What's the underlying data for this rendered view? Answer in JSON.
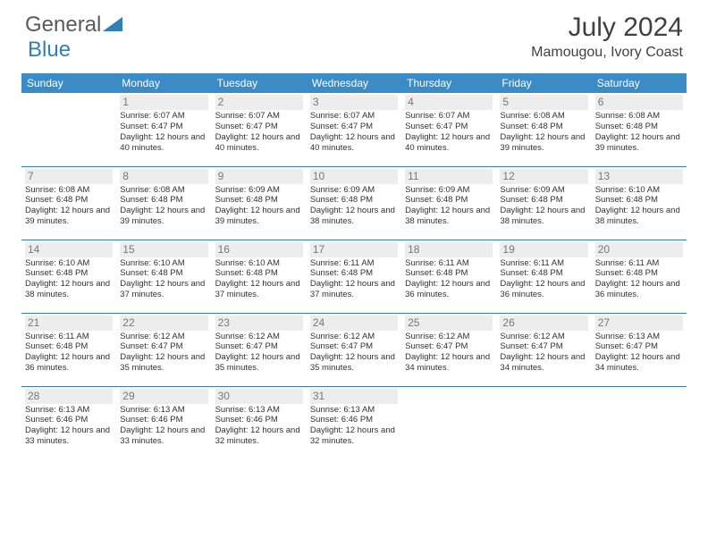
{
  "logo": {
    "text1": "General",
    "text2": "Blue",
    "color1": "#5a5a5a",
    "color2": "#2f7fb8",
    "triangle_color": "#2f7fb8"
  },
  "title": "July 2024",
  "location": "Mamougou, Ivory Coast",
  "colors": {
    "header_bg": "#3b8bc7",
    "header_text": "#ffffff",
    "row_divider": "#2f7fb8",
    "daynum_bg": "#ededed",
    "daynum_text": "#787878",
    "body_text": "#323232",
    "title_text": "#404040"
  },
  "fonts": {
    "title_pt": 30,
    "location_pt": 16,
    "weekday_pt": 12,
    "daynum_pt": 12,
    "cell_pt": 9.5
  },
  "weekdays": [
    "Sunday",
    "Monday",
    "Tuesday",
    "Wednesday",
    "Thursday",
    "Friday",
    "Saturday"
  ],
  "weeks": [
    [
      {
        "day": "",
        "sunrise": "",
        "sunset": "",
        "daylight": ""
      },
      {
        "day": "1",
        "sunrise": "Sunrise: 6:07 AM",
        "sunset": "Sunset: 6:47 PM",
        "daylight": "Daylight: 12 hours and 40 minutes."
      },
      {
        "day": "2",
        "sunrise": "Sunrise: 6:07 AM",
        "sunset": "Sunset: 6:47 PM",
        "daylight": "Daylight: 12 hours and 40 minutes."
      },
      {
        "day": "3",
        "sunrise": "Sunrise: 6:07 AM",
        "sunset": "Sunset: 6:47 PM",
        "daylight": "Daylight: 12 hours and 40 minutes."
      },
      {
        "day": "4",
        "sunrise": "Sunrise: 6:07 AM",
        "sunset": "Sunset: 6:47 PM",
        "daylight": "Daylight: 12 hours and 40 minutes."
      },
      {
        "day": "5",
        "sunrise": "Sunrise: 6:08 AM",
        "sunset": "Sunset: 6:48 PM",
        "daylight": "Daylight: 12 hours and 39 minutes."
      },
      {
        "day": "6",
        "sunrise": "Sunrise: 6:08 AM",
        "sunset": "Sunset: 6:48 PM",
        "daylight": "Daylight: 12 hours and 39 minutes."
      }
    ],
    [
      {
        "day": "7",
        "sunrise": "Sunrise: 6:08 AM",
        "sunset": "Sunset: 6:48 PM",
        "daylight": "Daylight: 12 hours and 39 minutes."
      },
      {
        "day": "8",
        "sunrise": "Sunrise: 6:08 AM",
        "sunset": "Sunset: 6:48 PM",
        "daylight": "Daylight: 12 hours and 39 minutes."
      },
      {
        "day": "9",
        "sunrise": "Sunrise: 6:09 AM",
        "sunset": "Sunset: 6:48 PM",
        "daylight": "Daylight: 12 hours and 39 minutes."
      },
      {
        "day": "10",
        "sunrise": "Sunrise: 6:09 AM",
        "sunset": "Sunset: 6:48 PM",
        "daylight": "Daylight: 12 hours and 38 minutes."
      },
      {
        "day": "11",
        "sunrise": "Sunrise: 6:09 AM",
        "sunset": "Sunset: 6:48 PM",
        "daylight": "Daylight: 12 hours and 38 minutes."
      },
      {
        "day": "12",
        "sunrise": "Sunrise: 6:09 AM",
        "sunset": "Sunset: 6:48 PM",
        "daylight": "Daylight: 12 hours and 38 minutes."
      },
      {
        "day": "13",
        "sunrise": "Sunrise: 6:10 AM",
        "sunset": "Sunset: 6:48 PM",
        "daylight": "Daylight: 12 hours and 38 minutes."
      }
    ],
    [
      {
        "day": "14",
        "sunrise": "Sunrise: 6:10 AM",
        "sunset": "Sunset: 6:48 PM",
        "daylight": "Daylight: 12 hours and 38 minutes."
      },
      {
        "day": "15",
        "sunrise": "Sunrise: 6:10 AM",
        "sunset": "Sunset: 6:48 PM",
        "daylight": "Daylight: 12 hours and 37 minutes."
      },
      {
        "day": "16",
        "sunrise": "Sunrise: 6:10 AM",
        "sunset": "Sunset: 6:48 PM",
        "daylight": "Daylight: 12 hours and 37 minutes."
      },
      {
        "day": "17",
        "sunrise": "Sunrise: 6:11 AM",
        "sunset": "Sunset: 6:48 PM",
        "daylight": "Daylight: 12 hours and 37 minutes."
      },
      {
        "day": "18",
        "sunrise": "Sunrise: 6:11 AM",
        "sunset": "Sunset: 6:48 PM",
        "daylight": "Daylight: 12 hours and 36 minutes."
      },
      {
        "day": "19",
        "sunrise": "Sunrise: 6:11 AM",
        "sunset": "Sunset: 6:48 PM",
        "daylight": "Daylight: 12 hours and 36 minutes."
      },
      {
        "day": "20",
        "sunrise": "Sunrise: 6:11 AM",
        "sunset": "Sunset: 6:48 PM",
        "daylight": "Daylight: 12 hours and 36 minutes."
      }
    ],
    [
      {
        "day": "21",
        "sunrise": "Sunrise: 6:11 AM",
        "sunset": "Sunset: 6:48 PM",
        "daylight": "Daylight: 12 hours and 36 minutes."
      },
      {
        "day": "22",
        "sunrise": "Sunrise: 6:12 AM",
        "sunset": "Sunset: 6:47 PM",
        "daylight": "Daylight: 12 hours and 35 minutes."
      },
      {
        "day": "23",
        "sunrise": "Sunrise: 6:12 AM",
        "sunset": "Sunset: 6:47 PM",
        "daylight": "Daylight: 12 hours and 35 minutes."
      },
      {
        "day": "24",
        "sunrise": "Sunrise: 6:12 AM",
        "sunset": "Sunset: 6:47 PM",
        "daylight": "Daylight: 12 hours and 35 minutes."
      },
      {
        "day": "25",
        "sunrise": "Sunrise: 6:12 AM",
        "sunset": "Sunset: 6:47 PM",
        "daylight": "Daylight: 12 hours and 34 minutes."
      },
      {
        "day": "26",
        "sunrise": "Sunrise: 6:12 AM",
        "sunset": "Sunset: 6:47 PM",
        "daylight": "Daylight: 12 hours and 34 minutes."
      },
      {
        "day": "27",
        "sunrise": "Sunrise: 6:13 AM",
        "sunset": "Sunset: 6:47 PM",
        "daylight": "Daylight: 12 hours and 34 minutes."
      }
    ],
    [
      {
        "day": "28",
        "sunrise": "Sunrise: 6:13 AM",
        "sunset": "Sunset: 6:46 PM",
        "daylight": "Daylight: 12 hours and 33 minutes."
      },
      {
        "day": "29",
        "sunrise": "Sunrise: 6:13 AM",
        "sunset": "Sunset: 6:46 PM",
        "daylight": "Daylight: 12 hours and 33 minutes."
      },
      {
        "day": "30",
        "sunrise": "Sunrise: 6:13 AM",
        "sunset": "Sunset: 6:46 PM",
        "daylight": "Daylight: 12 hours and 32 minutes."
      },
      {
        "day": "31",
        "sunrise": "Sunrise: 6:13 AM",
        "sunset": "Sunset: 6:46 PM",
        "daylight": "Daylight: 12 hours and 32 minutes."
      },
      {
        "day": "",
        "sunrise": "",
        "sunset": "",
        "daylight": ""
      },
      {
        "day": "",
        "sunrise": "",
        "sunset": "",
        "daylight": ""
      },
      {
        "day": "",
        "sunrise": "",
        "sunset": "",
        "daylight": ""
      }
    ]
  ]
}
